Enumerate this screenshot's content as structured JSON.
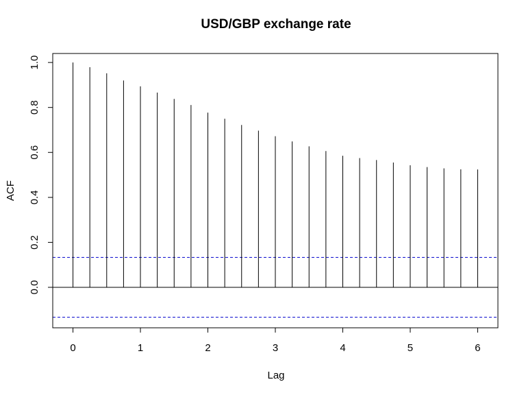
{
  "chart_data": {
    "type": "bar",
    "title": "USD/GBP exchange rate",
    "xlabel": "Lag",
    "ylabel": "ACF",
    "xlim": [
      -0.3,
      6.3
    ],
    "ylim": [
      -0.18,
      1.04
    ],
    "x_ticks": [
      0,
      1,
      2,
      3,
      4,
      5,
      6
    ],
    "x_tick_labels": [
      "0",
      "1",
      "2",
      "3",
      "4",
      "5",
      "6"
    ],
    "y_ticks": [
      0.0,
      0.2,
      0.4,
      0.6,
      0.8,
      1.0
    ],
    "y_tick_labels": [
      "0.0",
      "0.2",
      "0.4",
      "0.6",
      "0.8",
      "1.0"
    ],
    "lags": [
      0,
      0.25,
      0.5,
      0.75,
      1,
      1.25,
      1.5,
      1.75,
      2,
      2.25,
      2.5,
      2.75,
      3,
      3.25,
      3.5,
      3.75,
      4,
      4.25,
      4.5,
      4.75,
      5,
      5.25,
      5.5,
      5.75,
      6
    ],
    "acf": [
      1.0,
      0.979,
      0.952,
      0.92,
      0.894,
      0.866,
      0.838,
      0.811,
      0.777,
      0.75,
      0.722,
      0.697,
      0.672,
      0.649,
      0.627,
      0.606,
      0.585,
      0.575,
      0.566,
      0.555,
      0.543,
      0.535,
      0.529,
      0.525,
      0.524
    ],
    "confidence_bound": 0.133,
    "confidence_line_color": "#0000cc",
    "bar_color": "#000000",
    "grid": false
  }
}
